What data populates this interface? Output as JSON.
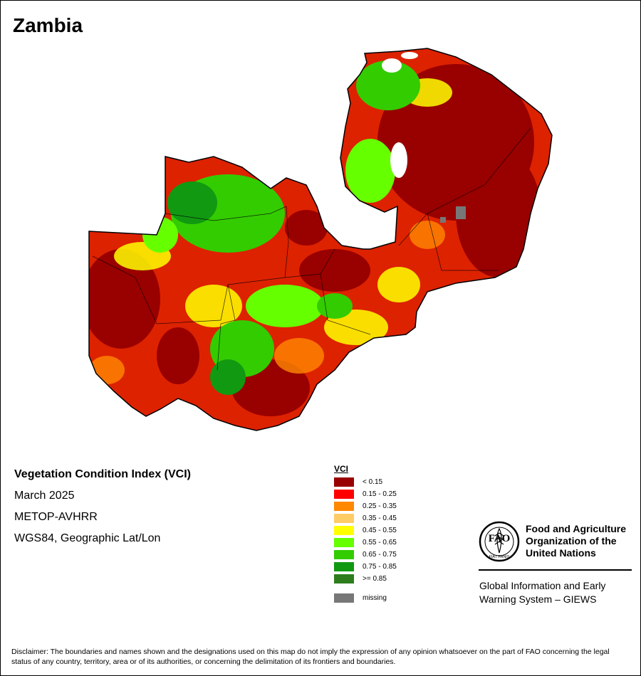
{
  "title": "Zambia",
  "info": {
    "index_name": "Vegetation Condition Index (VCI)",
    "period": "March 2025",
    "sensor": "METOP-AVHRR",
    "projection": "WGS84, Geographic Lat/Lon"
  },
  "legend": {
    "title": "VCI",
    "classes": [
      {
        "label": "< 0.15",
        "color": "#990000"
      },
      {
        "label": "0.15 - 0.25",
        "color": "#ff0000"
      },
      {
        "label": "0.25 - 0.35",
        "color": "#ff8800"
      },
      {
        "label": "0.35 - 0.45",
        "color": "#ffcc66"
      },
      {
        "label": "0.45 - 0.55",
        "color": "#ffff00"
      },
      {
        "label": "0.55 - 0.65",
        "color": "#66ff00"
      },
      {
        "label": "0.65 - 0.75",
        "color": "#33cc00"
      },
      {
        "label": "0.75 - 0.85",
        "color": "#119911"
      },
      {
        "label": ">= 0.85",
        "color": "#2e7d1c"
      }
    ],
    "missing": {
      "label": "missing",
      "color": "#777777"
    }
  },
  "organization": {
    "name_lines": [
      "Food and Agriculture",
      "Organization of the",
      "United Nations"
    ],
    "logo_text": "FAO",
    "motto": "FIAT PANIS",
    "program_lines": [
      "Global Information and Early",
      "Warning System – GIEWS"
    ]
  },
  "disclaimer": "Disclaimer: The boundaries and names shown and the designations used on this map do not imply the expression of any opinion whatsoever on the part of FAO concerning the legal status of any country, territory, area or of its authorities, or concerning the delimitation of its frontiers and boundaries."
}
